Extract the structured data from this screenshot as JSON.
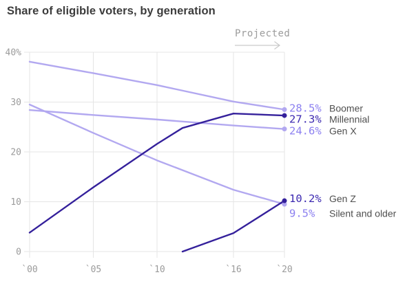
{
  "header": {
    "title": "Share of eligible voters, by generation"
  },
  "colors": {
    "title_text": "#3c3c3c",
    "name_text": "#4f4f4f",
    "axis_text": "#9b9b9b",
    "grid": "#e5e5e5",
    "arrow": "#c9c9c9",
    "light_purple": "#b2a8f0",
    "dark_purple": "#34209b",
    "light_text": "#8c80f0",
    "dark_text": "#3b28b0"
  },
  "chart_data": {
    "type": "line",
    "title": "Share of eligible voters, by generation",
    "xlabel": "",
    "ylabel": "",
    "annotation": "Projected",
    "grid": true,
    "legend_position": "right-end-labels",
    "xlim": [
      2000,
      2020
    ],
    "ylim": [
      0,
      40
    ],
    "x_ticks": [
      {
        "value": 2000,
        "label": "`00"
      },
      {
        "value": 2005,
        "label": "`05"
      },
      {
        "value": 2010,
        "label": "`10"
      },
      {
        "value": 2016,
        "label": "`16"
      },
      {
        "value": 2020,
        "label": "`20"
      }
    ],
    "y_ticks": [
      {
        "value": 40,
        "label": "40%"
      },
      {
        "value": 30,
        "label": "30"
      },
      {
        "value": 20,
        "label": "20"
      },
      {
        "value": 10,
        "label": "10"
      },
      {
        "value": 0,
        "label": "0"
      }
    ],
    "series": [
      {
        "name": "Boomer",
        "tone": "light",
        "end_label": "28.5%",
        "label_dy": -2,
        "points": [
          [
            2000,
            38.1
          ],
          [
            2005,
            35.8
          ],
          [
            2010,
            33.4
          ],
          [
            2016,
            30.1
          ],
          [
            2020,
            28.5
          ]
        ]
      },
      {
        "name": "Gen X",
        "tone": "light",
        "end_label": "24.6%",
        "label_dy": 3,
        "points": [
          [
            2000,
            28.4
          ],
          [
            2005,
            27.4
          ],
          [
            2010,
            26.5
          ],
          [
            2016,
            25.3
          ],
          [
            2020,
            24.6
          ]
        ]
      },
      {
        "name": "Silent and older",
        "tone": "light",
        "end_label": "9.5%",
        "label_dy": 13.5,
        "points": [
          [
            2000,
            29.5
          ],
          [
            2005,
            23.8
          ],
          [
            2010,
            18.3
          ],
          [
            2016,
            12.4
          ],
          [
            2020,
            9.5
          ]
        ]
      },
      {
        "name": "Millennial",
        "tone": "dark",
        "end_label": "27.3%",
        "label_dy": 5.5,
        "points": [
          [
            2000,
            3.8
          ],
          [
            2005,
            12.9
          ],
          [
            2010,
            21.6
          ],
          [
            2012,
            24.8
          ],
          [
            2016,
            27.7
          ],
          [
            2020,
            27.3
          ]
        ]
      },
      {
        "name": "Gen Z",
        "tone": "dark",
        "end_label": "10.2%",
        "label_dy": -3,
        "points": [
          [
            2012,
            0
          ],
          [
            2016,
            3.7
          ],
          [
            2020,
            10.2
          ]
        ]
      }
    ]
  }
}
